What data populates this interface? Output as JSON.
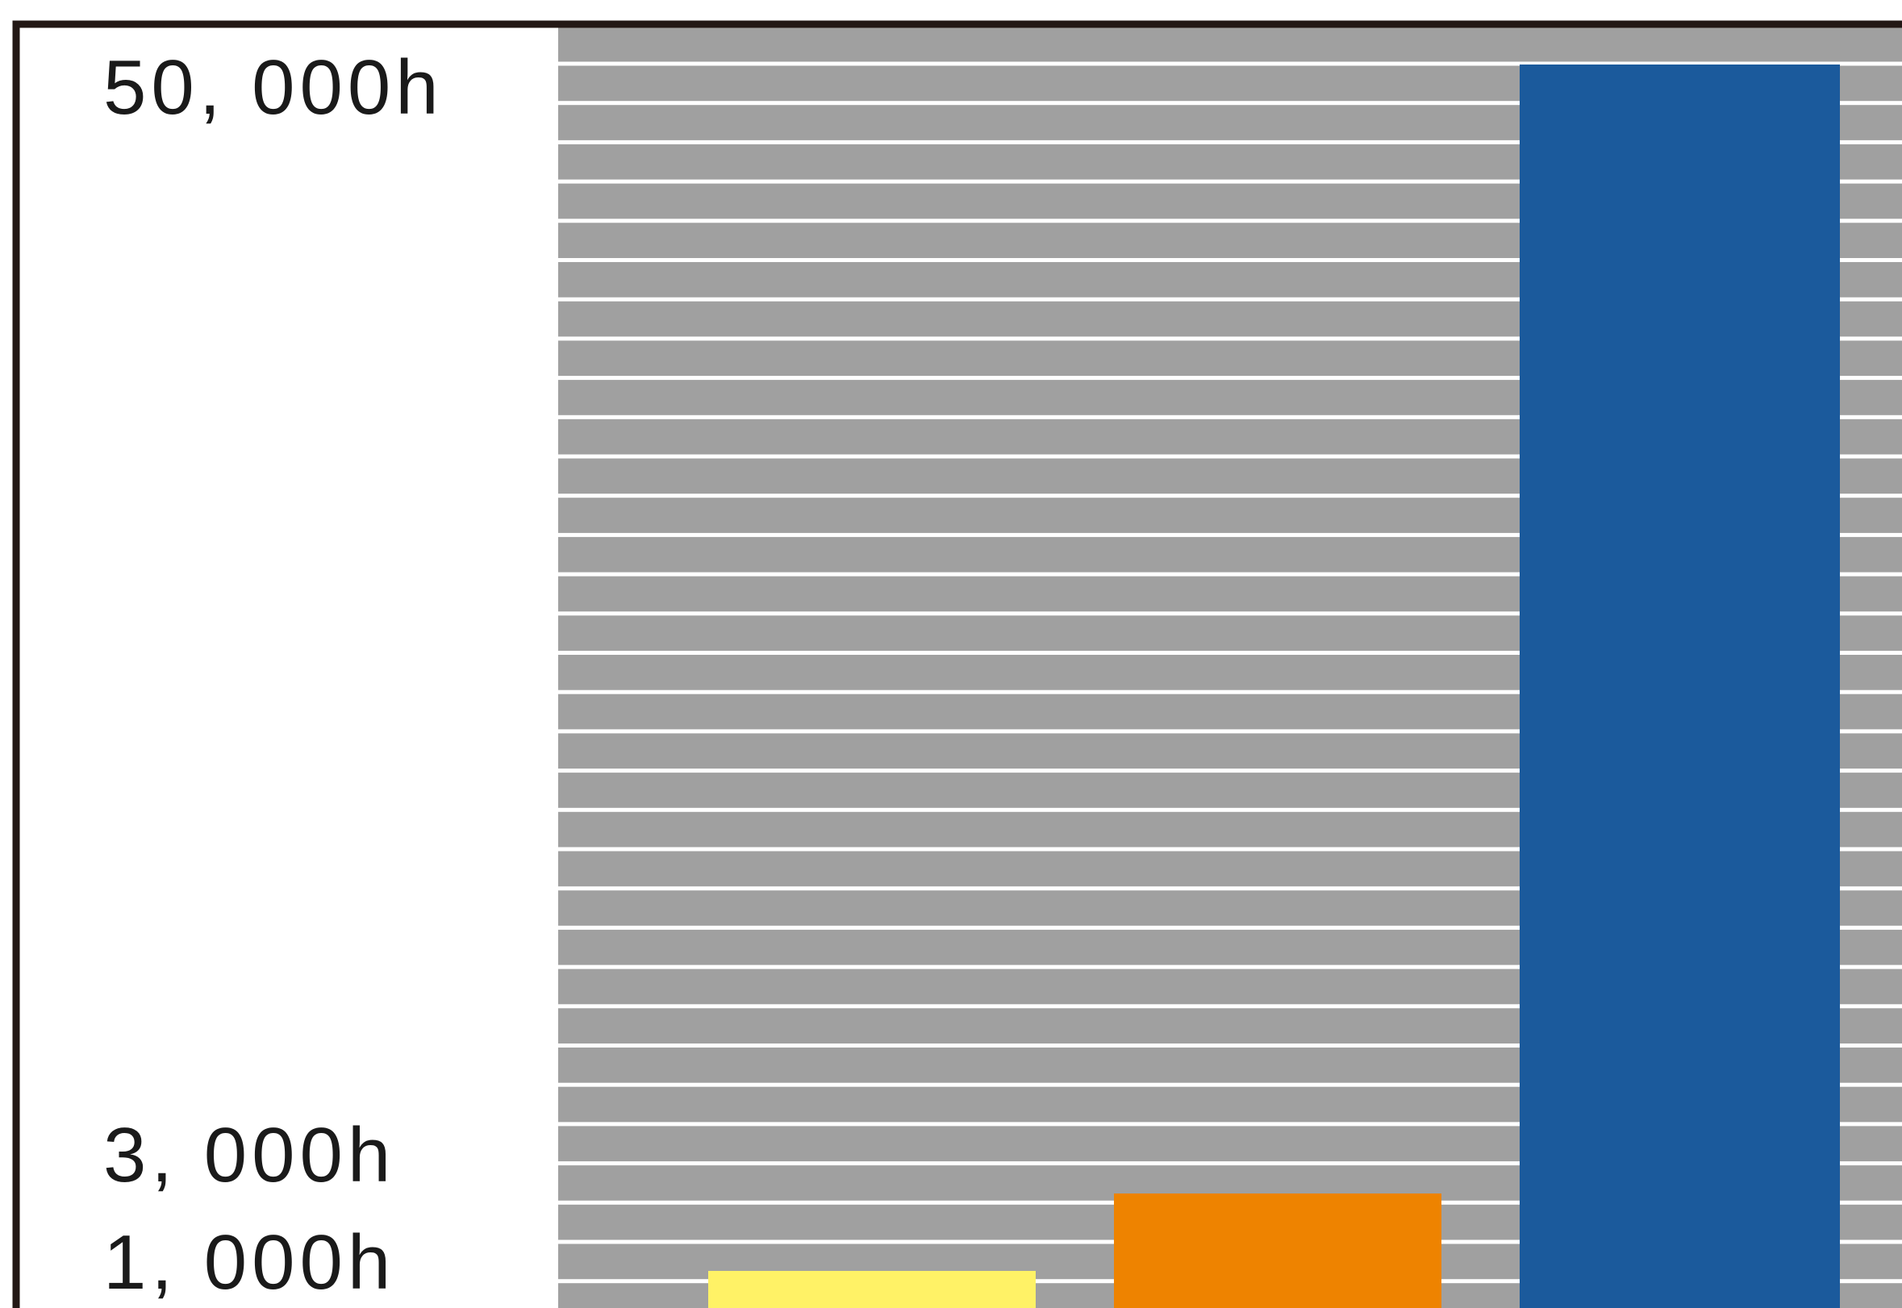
{
  "chart_data": {
    "type": "bar",
    "title": "",
    "xlabel": "",
    "ylabel": "",
    "categories": [
      "",
      "",
      ""
    ],
    "values": [
      1000,
      3000,
      50000
    ],
    "bar_colors": [
      "#FFF266",
      "#EE8300",
      "#1B5A9C"
    ],
    "y_tick_labels": [
      {
        "value": 50000,
        "label": "50, 000h"
      },
      {
        "value": 3000,
        "label": "3, 000h"
      },
      {
        "value": 1000,
        "label": "1, 000h"
      }
    ],
    "grid": true,
    "plot_background": "#A0A0A0",
    "grid_color": "#FFFFFF",
    "frame_color": "#231815"
  }
}
